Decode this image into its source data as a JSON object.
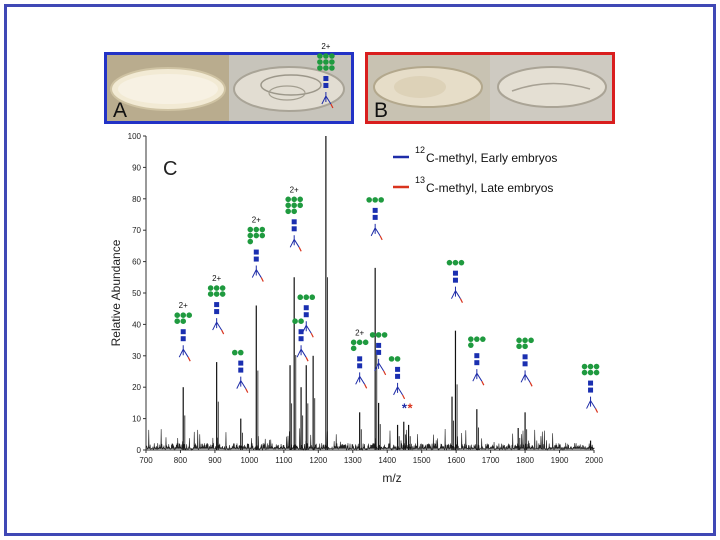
{
  "panels": {
    "a": {
      "letter": "A"
    },
    "b": {
      "letter": "B"
    },
    "c": {
      "letter": "C"
    }
  },
  "colors": {
    "frame": "#3f48b5",
    "panel_a_border": "#2232c6",
    "panel_b_border": "#d91e1e",
    "series_early": "#1e2ca8",
    "series_late": "#d9341e",
    "glycan_mannose": "#1f9a3f",
    "glycan_glcnac": "#1a2fb0"
  },
  "icons": {
    "glycan": "green circles = mannose, blue squares = GlcNAc, forked tail = methylated reducing end",
    "asterisk": "star-icon"
  },
  "chart_data": {
    "type": "line",
    "title": "",
    "xlabel": "m/z",
    "ylabel": "Relative Abundance",
    "xlim": [
      700,
      2000
    ],
    "ylim": [
      0,
      100
    ],
    "x_ticks": [
      "700",
      "800",
      "900",
      "1000",
      "1100",
      "1200",
      "1300",
      "1400",
      "1500",
      "1600",
      "1700",
      "1800",
      "1900",
      "2000"
    ],
    "y_ticks": [
      "0",
      "10",
      "20",
      "30",
      "40",
      "50",
      "60",
      "70",
      "80",
      "90",
      "100"
    ],
    "legend": [
      {
        "sup": "12",
        "label": "C-methyl, Early embryos",
        "color": "#1e2ca8"
      },
      {
        "sup": "13",
        "label": "C-methyl, Late embryos",
        "color": "#d9341e"
      }
    ],
    "peaks": [
      {
        "mz": 808,
        "y": 20,
        "charge": "2+",
        "mannose": 5,
        "glcnac": 2
      },
      {
        "mz": 905,
        "y": 28,
        "charge": "2+",
        "mannose": 6,
        "glcnac": 2
      },
      {
        "mz": 975,
        "y": 10,
        "charge": "",
        "mannose": 2,
        "glcnac": 2
      },
      {
        "mz": 1020,
        "y": 46,
        "charge": "2+",
        "mannose": 7,
        "glcnac": 2
      },
      {
        "mz": 1118,
        "y": 27,
        "charge": "",
        "mannose": 0,
        "glcnac": 0
      },
      {
        "mz": 1130,
        "y": 55,
        "charge": "2+",
        "mannose": 8,
        "glcnac": 2
      },
      {
        "mz": 1150,
        "y": 20,
        "charge": "",
        "mannose": 2,
        "glcnac": 2
      },
      {
        "mz": 1165,
        "y": 27,
        "charge": "",
        "mannose": 3,
        "glcnac": 2
      },
      {
        "mz": 1185,
        "y": 30,
        "charge": "",
        "mannose": 0,
        "glcnac": 0
      },
      {
        "mz": 1222,
        "y": 100,
        "charge": "2+",
        "mannose": 9,
        "glcnac": 2
      },
      {
        "mz": 1320,
        "y": 12,
        "charge": "2+",
        "mannose": 4,
        "glcnac": 2
      },
      {
        "mz": 1365,
        "y": 58,
        "charge": "",
        "mannose": 3,
        "glcnac": 2
      },
      {
        "mz": 1375,
        "y": 15,
        "charge": "",
        "mannose": 3,
        "glcnac": 2
      },
      {
        "mz": 1430,
        "y": 8,
        "charge": "",
        "mannose": 2,
        "glcnac": 2
      },
      {
        "mz": 1448,
        "y": 9,
        "charge": "",
        "mannose": 0,
        "glcnac": 0
      },
      {
        "mz": 1462,
        "y": 8,
        "charge": "",
        "mannose": 0,
        "glcnac": 0
      },
      {
        "mz": 1588,
        "y": 17,
        "charge": "",
        "mannose": 0,
        "glcnac": 0
      },
      {
        "mz": 1598,
        "y": 38,
        "charge": "",
        "mannose": 3,
        "glcnac": 2
      },
      {
        "mz": 1660,
        "y": 13,
        "charge": "",
        "mannose": 4,
        "glcnac": 2
      },
      {
        "mz": 1780,
        "y": 7,
        "charge": "",
        "mannose": 0,
        "glcnac": 0
      },
      {
        "mz": 1800,
        "y": 12,
        "charge": "",
        "mannose": 5,
        "glcnac": 2
      },
      {
        "mz": 1990,
        "y": 3,
        "charge": "",
        "mannose": 6,
        "glcnac": 2
      }
    ],
    "asterisk_marks": [
      {
        "mz": 1450,
        "label": "*",
        "color": "#1e2ca8"
      },
      {
        "mz": 1466,
        "label": "*",
        "color": "#d9341e"
      }
    ]
  }
}
